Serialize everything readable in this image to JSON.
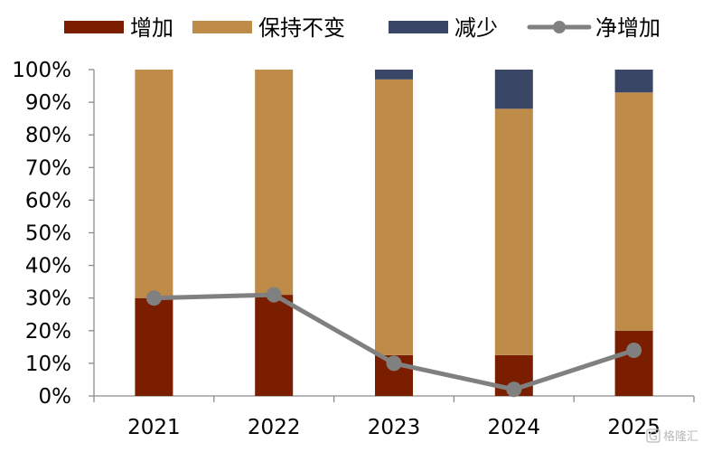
{
  "chart_data": {
    "type": "bar",
    "stacked": true,
    "categories": [
      "2021",
      "2022",
      "2023",
      "2024",
      "2025"
    ],
    "series": [
      {
        "name": "增加",
        "kind": "bar",
        "color": "#7B1E00",
        "values": [
          30,
          31,
          12.5,
          12.5,
          20
        ]
      },
      {
        "name": "保持不变",
        "kind": "bar",
        "color": "#BE8B48",
        "values": [
          70,
          69,
          84.5,
          75.5,
          73
        ]
      },
      {
        "name": "减少",
        "kind": "bar",
        "color": "#3A4666",
        "values": [
          0,
          0,
          3,
          12,
          7
        ]
      },
      {
        "name": "净增加",
        "kind": "line",
        "color": "#808080",
        "values": [
          30,
          31,
          10,
          2,
          14
        ]
      }
    ],
    "ylim": [
      0,
      100
    ],
    "yticks": [
      0,
      10,
      20,
      30,
      40,
      50,
      60,
      70,
      80,
      90,
      100
    ],
    "ytick_labels": [
      "0%",
      "10%",
      "20%",
      "30%",
      "40%",
      "50%",
      "60%",
      "70%",
      "80%",
      "90%",
      "100%"
    ],
    "legend_position": "top",
    "grid": false
  },
  "watermark": {
    "text": "格隆汇",
    "logo_text": "G"
  }
}
